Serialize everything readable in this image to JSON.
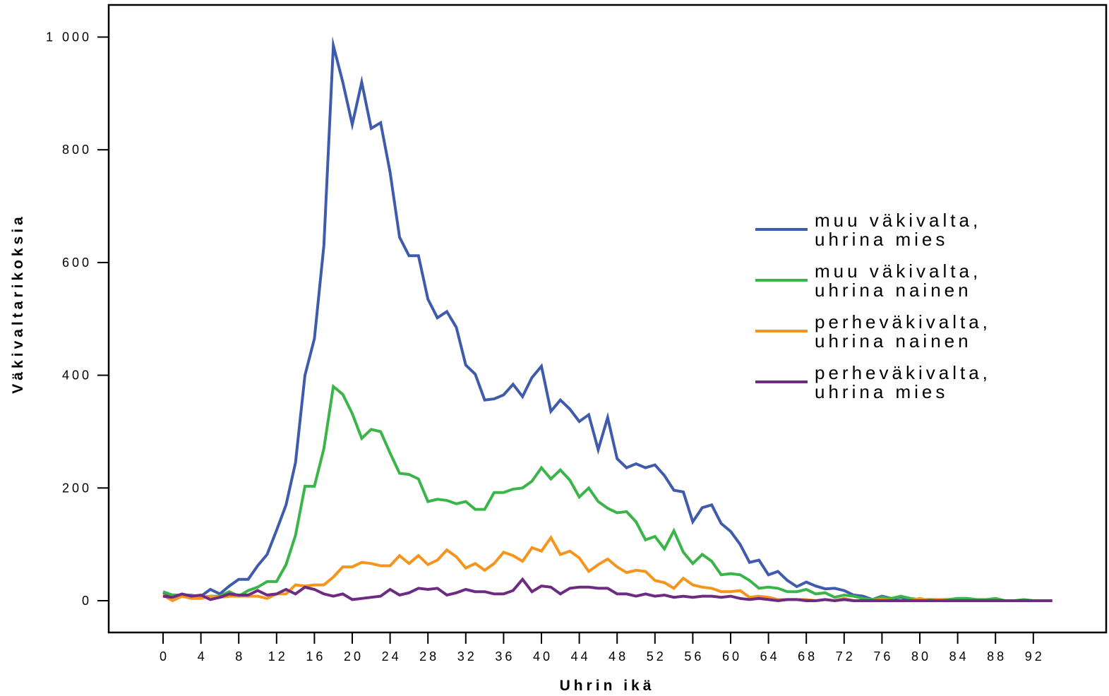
{
  "chart_data": {
    "type": "line",
    "title": "",
    "xlabel": "Uhrin ikä",
    "ylabel": "Väkivaltarikoksia",
    "xlim": [
      -5,
      99
    ],
    "ylim": [
      -55,
      1060
    ],
    "x_ticks": [
      0,
      4,
      8,
      12,
      16,
      20,
      24,
      28,
      32,
      36,
      40,
      44,
      48,
      52,
      56,
      60,
      64,
      68,
      72,
      76,
      80,
      84,
      88,
      92
    ],
    "x_tick_labels": [
      "0",
      "4",
      "8",
      "12",
      "16",
      "20",
      "24",
      "28",
      "32",
      "36",
      "40",
      "44",
      "48",
      "52",
      "56",
      "60",
      "64",
      "68",
      "72",
      "76",
      "80",
      "84",
      "88",
      "92"
    ],
    "y_ticks": [
      0,
      200,
      400,
      600,
      800,
      1000
    ],
    "y_tick_labels": [
      "0",
      "200",
      "400",
      "600",
      "800",
      "1 000"
    ],
    "grid": false,
    "legend_position": "right",
    "x": [
      0,
      1,
      2,
      3,
      4,
      5,
      6,
      7,
      8,
      9,
      10,
      11,
      12,
      13,
      14,
      15,
      16,
      17,
      18,
      19,
      20,
      21,
      22,
      23,
      24,
      25,
      26,
      27,
      28,
      29,
      30,
      31,
      32,
      33,
      34,
      35,
      36,
      37,
      38,
      39,
      40,
      41,
      42,
      43,
      44,
      45,
      46,
      47,
      48,
      49,
      50,
      51,
      52,
      53,
      54,
      55,
      56,
      57,
      58,
      59,
      60,
      61,
      62,
      63,
      64,
      65,
      66,
      67,
      68,
      69,
      70,
      71,
      72,
      73,
      74,
      75,
      76,
      77,
      78,
      79,
      80,
      81,
      82,
      83,
      84,
      85,
      86,
      87,
      88,
      89,
      90,
      91,
      92,
      93,
      94
    ],
    "series": [
      {
        "name": "muu väkivalta, uhrina mies",
        "color": "#3f5bab",
        "values": [
          14,
          8,
          10,
          6,
          8,
          20,
          12,
          26,
          38,
          38,
          62,
          82,
          125,
          170,
          245,
          400,
          465,
          630,
          985,
          920,
          845,
          920,
          838,
          848,
          760,
          645,
          612,
          612,
          535,
          502,
          513,
          485,
          418,
          402,
          356,
          358,
          365,
          384,
          362,
          396,
          416,
          336,
          356,
          340,
          318,
          330,
          268,
          325,
          252,
          236,
          243,
          236,
          241,
          222,
          196,
          193,
          140,
          165,
          170,
          137,
          123,
          100,
          68,
          72,
          46,
          52,
          36,
          25,
          33,
          26,
          21,
          22,
          18,
          10,
          8,
          2,
          8,
          4,
          6,
          2,
          0,
          2,
          0,
          2,
          2,
          0,
          0,
          0,
          0,
          0,
          0,
          0,
          0,
          0,
          0
        ]
      },
      {
        "name": "muu väkivalta, uhrina nainen",
        "color": "#3bb54a",
        "values": [
          16,
          10,
          10,
          10,
          6,
          8,
          8,
          16,
          8,
          18,
          24,
          34,
          34,
          64,
          116,
          203,
          203,
          270,
          380,
          366,
          332,
          288,
          304,
          300,
          262,
          226,
          224,
          216,
          176,
          180,
          178,
          172,
          176,
          162,
          162,
          192,
          192,
          198,
          200,
          212,
          236,
          216,
          232,
          214,
          184,
          200,
          176,
          164,
          156,
          158,
          140,
          108,
          114,
          92,
          124,
          86,
          66,
          82,
          70,
          46,
          48,
          46,
          36,
          22,
          24,
          22,
          16,
          16,
          20,
          12,
          14,
          6,
          10,
          8,
          4,
          2,
          6,
          4,
          8,
          4,
          2,
          2,
          2,
          2,
          4,
          4,
          2,
          2,
          4,
          0,
          0,
          2,
          0,
          0,
          0
        ]
      },
      {
        "name": "perheväkivalta, uhrina nainen",
        "color": "#f7941d",
        "values": [
          10,
          0,
          8,
          4,
          4,
          8,
          6,
          8,
          8,
          8,
          8,
          4,
          12,
          12,
          28,
          26,
          28,
          28,
          42,
          60,
          60,
          68,
          66,
          62,
          62,
          80,
          66,
          80,
          64,
          72,
          90,
          78,
          58,
          66,
          54,
          66,
          86,
          80,
          70,
          94,
          88,
          112,
          82,
          88,
          76,
          52,
          64,
          74,
          60,
          50,
          54,
          52,
          36,
          32,
          22,
          40,
          28,
          24,
          22,
          16,
          16,
          18,
          6,
          8,
          6,
          2,
          2,
          2,
          2,
          0,
          2,
          0,
          4,
          0,
          0,
          0,
          2,
          0,
          0,
          0,
          4,
          0,
          2,
          0,
          0,
          0,
          0,
          0,
          0,
          0,
          0,
          0,
          0,
          0,
          0
        ]
      },
      {
        "name": "perheväkivalta, uhrina mies",
        "color": "#6d2c82",
        "values": [
          8,
          6,
          12,
          8,
          10,
          2,
          6,
          12,
          10,
          10,
          18,
          10,
          12,
          20,
          12,
          24,
          20,
          12,
          8,
          12,
          2,
          4,
          6,
          8,
          20,
          10,
          14,
          22,
          20,
          22,
          10,
          14,
          20,
          16,
          16,
          12,
          12,
          18,
          38,
          16,
          26,
          24,
          12,
          22,
          24,
          24,
          22,
          22,
          12,
          12,
          8,
          12,
          8,
          10,
          6,
          8,
          6,
          8,
          8,
          6,
          8,
          4,
          2,
          4,
          2,
          0,
          2,
          2,
          0,
          0,
          2,
          0,
          2,
          0,
          0,
          0,
          0,
          0,
          0,
          0,
          0,
          0,
          0,
          0,
          0,
          0,
          0,
          0,
          0,
          0,
          0,
          0,
          0,
          0,
          0
        ]
      }
    ],
    "legend_lines": [
      [
        "muu väkivalta,",
        "uhrina mies"
      ],
      [
        "muu väkivalta,",
        "uhrina nainen"
      ],
      [
        "perheväkivalta,",
        "uhrina nainen"
      ],
      [
        "perheväkivalta,",
        "uhrina mies"
      ]
    ]
  }
}
